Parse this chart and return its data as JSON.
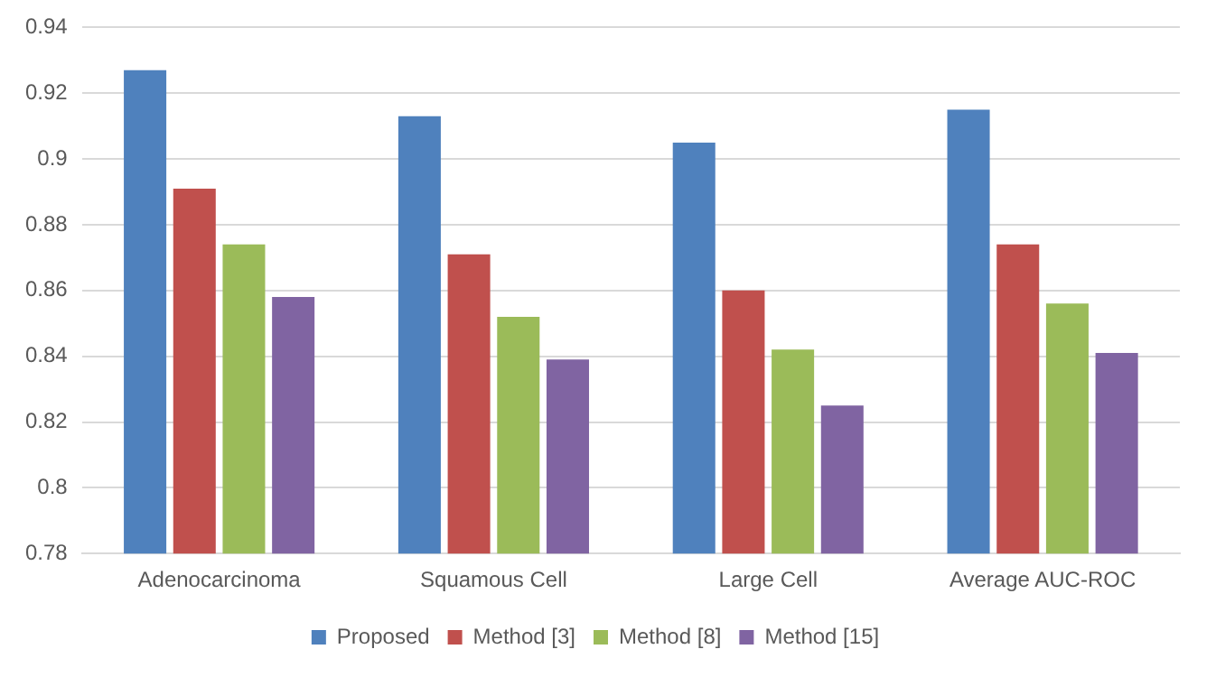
{
  "chart_data": {
    "type": "bar",
    "categories": [
      "Adenocarcinoma",
      "Squamous Cell",
      "Large Cell",
      "Average AUC-ROC"
    ],
    "series": [
      {
        "name": "Proposed",
        "color": "#4f81bd",
        "values": [
          0.927,
          0.913,
          0.905,
          0.915
        ]
      },
      {
        "name": "Method [3]",
        "color": "#c0504d",
        "values": [
          0.891,
          0.871,
          0.86,
          0.874
        ]
      },
      {
        "name": "Method [8]",
        "color": "#9bbb59",
        "values": [
          0.874,
          0.852,
          0.842,
          0.856
        ]
      },
      {
        "name": "Method [15]",
        "color": "#8064a2",
        "values": [
          0.858,
          0.839,
          0.825,
          0.841
        ]
      }
    ],
    "ylim": [
      0.78,
      0.94
    ],
    "yticks": [
      0.78,
      0.8,
      0.82,
      0.84,
      0.86,
      0.88,
      0.9,
      0.92,
      0.94
    ],
    "grid": "y",
    "legend": "bottom"
  }
}
